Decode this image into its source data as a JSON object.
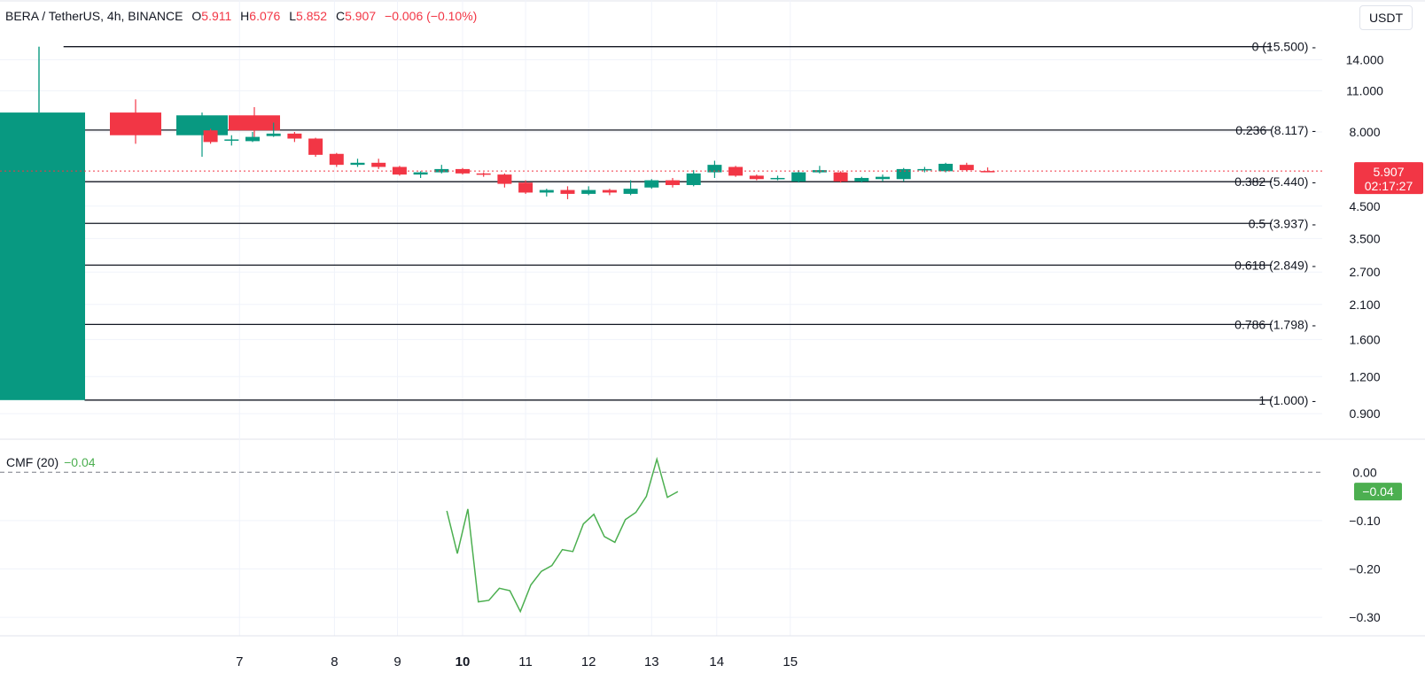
{
  "header": {
    "symbol": "BERA / TetherUS, 4h, BINANCE",
    "open_label": "O",
    "open": "5.911",
    "high_label": "H",
    "high": "6.076",
    "low_label": "L",
    "low": "5.852",
    "close_label": "C",
    "close": "5.907",
    "change": "−0.006 (−0.10%)",
    "currency": "USDT"
  },
  "colors": {
    "up": "#089981",
    "down": "#f23645",
    "cmf": "#4caf50",
    "fib": "#131722",
    "grid": "#f0f3fa"
  },
  "chart_data": [
    {
      "type": "candlestick",
      "scale": "log",
      "ylim": [
        0.78,
        20.5
      ],
      "price_ticks": [
        14.0,
        11.0,
        8.0,
        4.5,
        3.5,
        2.7,
        2.1,
        1.6,
        1.2,
        0.9
      ],
      "price_tick_labels": [
        "14.000",
        "11.000",
        "8.000",
        "4.500",
        "3.500",
        "2.700",
        "2.100",
        "1.600",
        "1.200",
        "0.900"
      ],
      "x_ticks": [
        {
          "label": "7",
          "t": 9.38,
          "bold": false
        },
        {
          "label": "8",
          "t": 13.9,
          "bold": false
        },
        {
          "label": "9",
          "t": 16.9,
          "bold": false
        },
        {
          "label": "10",
          "t": 20.0,
          "bold": true
        },
        {
          "label": "11",
          "t": 23.0,
          "bold": false
        },
        {
          "label": "12",
          "t": 26.0,
          "bold": false
        },
        {
          "label": "13",
          "t": 29.0,
          "bold": false
        },
        {
          "label": "14",
          "t": 32.1,
          "bold": false
        },
        {
          "label": "15",
          "t": 35.6,
          "bold": false
        }
      ],
      "fib_levels": [
        {
          "label": "0 (15.500)",
          "value": 15.5
        },
        {
          "label": "0.236 (8.117)",
          "value": 8.117
        },
        {
          "label": "0.382 (5.440)",
          "value": 5.44
        },
        {
          "label": "0.5 (3.937)",
          "value": 3.937
        },
        {
          "label": "0.618 (2.849)",
          "value": 2.849
        },
        {
          "label": "0.786 (1.798)",
          "value": 1.798
        },
        {
          "label": "1 (1.000)",
          "value": 1.0
        }
      ],
      "last_price": {
        "value": 5.907,
        "label": "5.907",
        "countdown": "02:17:27"
      },
      "candles": [
        {
          "o": 1.0,
          "h": 15.5,
          "l": 1.0,
          "c": 9.3
        },
        {
          "o": 9.3,
          "h": 10.3,
          "l": 7.3,
          "c": 7.8
        },
        {
          "o": 7.8,
          "h": 9.3,
          "l": 6.6,
          "c": 9.1
        },
        {
          "o": 9.1,
          "h": 9.7,
          "l": 7.7,
          "c": 8.1
        },
        {
          "o": 8.1,
          "h": 8.2,
          "l": 7.3,
          "c": 7.4
        },
        {
          "o": 7.5,
          "h": 7.8,
          "l": 7.2,
          "c": 7.55
        },
        {
          "o": 7.45,
          "h": 8.0,
          "l": 7.4,
          "c": 7.7
        },
        {
          "o": 7.75,
          "h": 8.6,
          "l": 7.7,
          "c": 7.9
        },
        {
          "o": 7.9,
          "h": 8.0,
          "l": 7.4,
          "c": 7.6
        },
        {
          "o": 7.6,
          "h": 7.65,
          "l": 6.6,
          "c": 6.7
        },
        {
          "o": 6.75,
          "h": 6.8,
          "l": 6.1,
          "c": 6.2
        },
        {
          "o": 6.2,
          "h": 6.5,
          "l": 6.1,
          "c": 6.3
        },
        {
          "o": 6.3,
          "h": 6.5,
          "l": 6.0,
          "c": 6.1
        },
        {
          "o": 6.1,
          "h": 6.15,
          "l": 5.7,
          "c": 5.75
        },
        {
          "o": 5.75,
          "h": 5.9,
          "l": 5.6,
          "c": 5.85
        },
        {
          "o": 5.85,
          "h": 6.2,
          "l": 5.8,
          "c": 6.0
        },
        {
          "o": 6.0,
          "h": 6.05,
          "l": 5.75,
          "c": 5.8
        },
        {
          "o": 5.8,
          "h": 5.85,
          "l": 5.65,
          "c": 5.75
        },
        {
          "o": 5.75,
          "h": 5.8,
          "l": 5.2,
          "c": 5.35
        },
        {
          "o": 5.4,
          "h": 5.5,
          "l": 4.95,
          "c": 5.0
        },
        {
          "o": 5.0,
          "h": 5.15,
          "l": 4.85,
          "c": 5.1
        },
        {
          "o": 5.1,
          "h": 5.25,
          "l": 4.75,
          "c": 4.95
        },
        {
          "o": 4.95,
          "h": 5.25,
          "l": 4.9,
          "c": 5.1
        },
        {
          "o": 5.1,
          "h": 5.15,
          "l": 4.9,
          "c": 5.0
        },
        {
          "o": 4.95,
          "h": 5.5,
          "l": 4.9,
          "c": 5.15
        },
        {
          "o": 5.2,
          "h": 5.55,
          "l": 5.15,
          "c": 5.5
        },
        {
          "o": 5.5,
          "h": 5.6,
          "l": 5.2,
          "c": 5.3
        },
        {
          "o": 5.3,
          "h": 5.95,
          "l": 5.25,
          "c": 5.8
        },
        {
          "o": 5.85,
          "h": 6.4,
          "l": 5.6,
          "c": 6.2
        },
        {
          "o": 6.1,
          "h": 6.15,
          "l": 5.65,
          "c": 5.7
        },
        {
          "o": 5.7,
          "h": 5.75,
          "l": 5.5,
          "c": 5.55
        },
        {
          "o": 5.55,
          "h": 5.7,
          "l": 5.5,
          "c": 5.6
        },
        {
          "o": 5.45,
          "h": 5.95,
          "l": 5.4,
          "c": 5.85
        },
        {
          "o": 5.85,
          "h": 6.15,
          "l": 5.8,
          "c": 5.95
        },
        {
          "o": 5.85,
          "h": 5.9,
          "l": 5.4,
          "c": 5.45
        },
        {
          "o": 5.45,
          "h": 5.65,
          "l": 5.4,
          "c": 5.6
        },
        {
          "o": 5.55,
          "h": 5.75,
          "l": 5.45,
          "c": 5.65
        },
        {
          "o": 5.55,
          "h": 6.05,
          "l": 5.45,
          "c": 6.0
        },
        {
          "o": 5.95,
          "h": 6.1,
          "l": 5.85,
          "c": 6.0
        },
        {
          "o": 5.9,
          "h": 6.3,
          "l": 5.85,
          "c": 6.25
        },
        {
          "o": 6.2,
          "h": 6.3,
          "l": 5.9,
          "c": 5.95
        },
        {
          "o": 5.911,
          "h": 6.076,
          "l": 5.852,
          "c": 5.907
        }
      ]
    },
    {
      "type": "line",
      "indicator": "CMF (20)",
      "current_label": "−0.04",
      "ylim": [
        -0.32,
        0.05
      ],
      "ticks": [
        0.0,
        -0.1,
        -0.2,
        -0.3
      ],
      "tick_labels": [
        "0.00",
        "−0.10",
        "−0.20",
        "−0.30"
      ],
      "zero_label": "0.00",
      "points": [
        {
          "t": 19.25,
          "y": -0.08
        },
        {
          "t": 19.75,
          "y": -0.168
        },
        {
          "t": 20.25,
          "y": -0.076
        },
        {
          "t": 20.75,
          "y": -0.268
        },
        {
          "t": 21.25,
          "y": -0.265
        },
        {
          "t": 21.75,
          "y": -0.24
        },
        {
          "t": 22.25,
          "y": -0.245
        },
        {
          "t": 22.75,
          "y": -0.288
        },
        {
          "t": 23.25,
          "y": -0.233
        },
        {
          "t": 23.75,
          "y": -0.205
        },
        {
          "t": 24.25,
          "y": -0.193
        },
        {
          "t": 24.75,
          "y": -0.16
        },
        {
          "t": 25.25,
          "y": -0.164
        },
        {
          "t": 25.75,
          "y": -0.107
        },
        {
          "t": 26.25,
          "y": -0.087
        },
        {
          "t": 26.75,
          "y": -0.133
        },
        {
          "t": 27.25,
          "y": -0.145
        },
        {
          "t": 27.75,
          "y": -0.098
        },
        {
          "t": 28.25,
          "y": -0.083
        },
        {
          "t": 28.75,
          "y": -0.05
        },
        {
          "t": 29.25,
          "y": 0.027
        },
        {
          "t": 29.75,
          "y": -0.052
        },
        {
          "t": 30.25,
          "y": -0.04
        }
      ]
    }
  ]
}
